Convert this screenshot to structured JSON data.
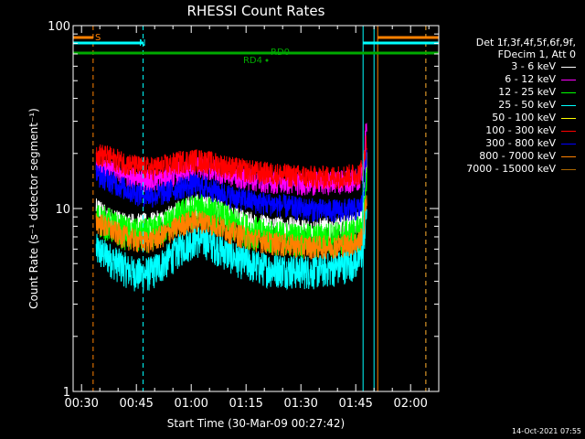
{
  "chart_data": {
    "type": "line",
    "title": "RHESSI Count Rates",
    "xlabel": "Start Time (30-Mar-09 00:27:42)",
    "ylabel": "Count Rate (s⁻¹ detector segment⁻¹)",
    "y_scale": "log",
    "ylim": [
      1,
      100
    ],
    "y_ticks": [
      {
        "value": 1,
        "label": "1"
      },
      {
        "value": 10,
        "label": "10"
      },
      {
        "value": 100,
        "label": "100"
      }
    ],
    "xlim": [
      "00:27:42",
      "02:07:42"
    ],
    "x_ticks": [
      "00:30",
      "00:45",
      "01:00",
      "01:15",
      "01:30",
      "01:45",
      "02:00"
    ],
    "series": [
      {
        "name": "3 - 6 keV",
        "color": "#ffffff",
        "x": [
          "00:34",
          "00:37",
          "00:40",
          "00:43",
          "00:46",
          "00:49",
          "00:52",
          "00:55",
          "00:58",
          "01:01",
          "01:04",
          "01:07",
          "01:10",
          "01:13",
          "01:16",
          "01:19",
          "01:22",
          "01:25",
          "01:28",
          "01:31",
          "01:34",
          "01:37",
          "01:40",
          "01:43",
          "01:46",
          "01:47",
          "01:48"
        ],
        "y": [
          10,
          9,
          8.5,
          8.3,
          8.2,
          8.3,
          8.6,
          9.2,
          10,
          10.5,
          10.4,
          9.9,
          9.3,
          8.8,
          8.4,
          8.1,
          8,
          7.9,
          7.8,
          7.7,
          7.7,
          7.8,
          7.9,
          8.1,
          8.5,
          9.5,
          18
        ]
      },
      {
        "name": "6 - 12 keV",
        "color": "#ff00ff",
        "x": [
          "00:34",
          "00:37",
          "00:40",
          "00:43",
          "00:46",
          "00:49",
          "00:52",
          "00:55",
          "00:58",
          "01:01",
          "01:04",
          "01:07",
          "01:10",
          "01:13",
          "01:16",
          "01:19",
          "01:22",
          "01:25",
          "01:28",
          "01:31",
          "01:34",
          "01:37",
          "01:40",
          "01:43",
          "01:46",
          "01:47",
          "01:48"
        ],
        "y": [
          17,
          16.5,
          15.8,
          15,
          14.5,
          14.3,
          14.6,
          15.3,
          16.2,
          16.9,
          16.7,
          16.1,
          15.5,
          15,
          14.6,
          14.3,
          14.1,
          14,
          13.9,
          13.8,
          13.8,
          13.9,
          14,
          14.2,
          14.6,
          16,
          30
        ]
      },
      {
        "name": "12 - 25 keV",
        "color": "#00ff00",
        "x": [
          "00:34",
          "00:37",
          "00:40",
          "00:43",
          "00:46",
          "00:49",
          "00:52",
          "00:55",
          "00:58",
          "01:01",
          "01:04",
          "01:07",
          "01:10",
          "01:13",
          "01:16",
          "01:19",
          "01:22",
          "01:25",
          "01:28",
          "01:31",
          "01:34",
          "01:37",
          "01:40",
          "01:43",
          "01:46",
          "01:47",
          "01:48"
        ],
        "y": [
          9,
          8.4,
          7.8,
          7.4,
          7.2,
          7.4,
          7.9,
          8.6,
          9.4,
          9.9,
          9.8,
          9.2,
          8.6,
          8.1,
          7.6,
          7.3,
          7.1,
          7,
          6.9,
          6.8,
          6.8,
          6.9,
          7,
          7.2,
          7.5,
          8.5,
          14
        ]
      },
      {
        "name": "25 - 50 keV",
        "color": "#00ffff",
        "x": [
          "00:34",
          "00:37",
          "00:40",
          "00:43",
          "00:46",
          "00:49",
          "00:52",
          "00:55",
          "00:58",
          "01:01",
          "01:04",
          "01:07",
          "01:10",
          "01:13",
          "01:16",
          "01:19",
          "01:22",
          "01:25",
          "01:28",
          "01:31",
          "01:34",
          "01:37",
          "01:40",
          "01:43",
          "01:46",
          "01:47",
          "01:48"
        ],
        "y": [
          6,
          5.5,
          5,
          4.6,
          4.4,
          4.5,
          5,
          5.6,
          6.3,
          6.8,
          6.7,
          6.2,
          5.7,
          5.3,
          5,
          4.8,
          4.7,
          4.7,
          4.6,
          4.6,
          4.6,
          4.7,
          4.8,
          5,
          5.3,
          6,
          10
        ]
      },
      {
        "name": "50 - 100 keV",
        "color": "#ffff00",
        "x": [],
        "y": []
      },
      {
        "name": "100 - 300 keV",
        "color": "#ff0000",
        "x": [
          "00:34",
          "00:37",
          "00:40",
          "00:43",
          "00:46",
          "00:49",
          "00:52",
          "00:55",
          "00:58",
          "01:01",
          "01:04",
          "01:07",
          "01:10",
          "01:13",
          "01:16",
          "01:19",
          "01:22",
          "01:25",
          "01:28",
          "01:31",
          "01:34",
          "01:37",
          "01:40",
          "01:43",
          "01:46",
          "01:47",
          "01:48"
        ],
        "y": [
          20,
          19.3,
          18.4,
          17.5,
          16.9,
          16.7,
          17,
          17.6,
          18.3,
          18.5,
          18.2,
          17.6,
          17,
          16.5,
          16.1,
          15.8,
          15.6,
          15.4,
          15.2,
          15,
          14.9,
          14.9,
          15,
          15.2,
          15.6,
          17,
          24
        ]
      },
      {
        "name": "300 - 800 keV",
        "color": "#0000ff",
        "x": [
          "00:34",
          "00:37",
          "00:40",
          "00:43",
          "00:46",
          "00:49",
          "00:52",
          "00:55",
          "00:58",
          "01:01",
          "01:04",
          "01:07",
          "01:10",
          "01:13",
          "01:16",
          "01:19",
          "01:22",
          "01:25",
          "01:28",
          "01:31",
          "01:34",
          "01:37",
          "01:40",
          "01:43",
          "01:46",
          "01:47",
          "01:48"
        ],
        "y": [
          15.5,
          14.5,
          13.5,
          12.6,
          12,
          11.8,
          12.1,
          12.7,
          13.3,
          13.5,
          13.1,
          12.5,
          11.9,
          11.4,
          11.1,
          10.8,
          10.6,
          10.4,
          10.2,
          10,
          9.9,
          9.8,
          9.8,
          9.9,
          10,
          11,
          20
        ]
      },
      {
        "name": "800 - 7000 keV",
        "color": "#ff8000",
        "x": [
          "00:34",
          "00:37",
          "00:40",
          "00:43",
          "00:46",
          "00:49",
          "00:52",
          "00:55",
          "00:58",
          "01:01",
          "01:04",
          "01:07",
          "01:10",
          "01:13",
          "01:16",
          "01:19",
          "01:22",
          "01:25",
          "01:28",
          "01:31",
          "01:34",
          "01:37",
          "01:40",
          "01:43",
          "01:46",
          "01:47",
          "01:48"
        ],
        "y": [
          8.5,
          7.9,
          7.3,
          6.9,
          6.6,
          6.7,
          7.1,
          7.7,
          8.3,
          8.6,
          8.5,
          8.1,
          7.6,
          7.2,
          6.9,
          6.7,
          6.5,
          6.4,
          6.3,
          6.2,
          6.2,
          6.2,
          6.3,
          6.4,
          6.6,
          7.5,
          12
        ]
      },
      {
        "name": "7000 - 15000 keV",
        "color": "#aa6600",
        "x": [],
        "y": []
      }
    ],
    "vertical_lines": [
      {
        "x": "00:27:42",
        "color": "#00ffff",
        "style": "solid"
      },
      {
        "x": "00:33:10",
        "color": "#ff8000",
        "style": "dashed"
      },
      {
        "x": "00:46:50",
        "color": "#00ffff",
        "style": "dashed"
      },
      {
        "x": "01:47:00",
        "color": "#00ffff",
        "style": "solid"
      },
      {
        "x": "01:51:00",
        "color": "#ff8000",
        "style": "solid"
      },
      {
        "x": "01:50:00",
        "color": "#00ffff",
        "style": "solid"
      },
      {
        "x": "02:04:10",
        "color": "#00ffff",
        "style": "dashed"
      },
      {
        "x": "02:04:10",
        "color": "#ff8000",
        "style": "dashed"
      }
    ],
    "annotations": [
      {
        "text": "S",
        "color": "#ff8000"
      },
      {
        "text": "N",
        "color": "#00ffff"
      },
      {
        "text": "RD0",
        "color": "#00aa00"
      },
      {
        "text": "RD4",
        "color": "#00aa00"
      }
    ],
    "legend": {
      "placement": "right",
      "header": [
        "Det 1f,3f,4f,5f,6f,9f,",
        "FDecim 1, Att 0"
      ]
    },
    "grid": false
  },
  "footer": {
    "date_stamp": "14-Oct-2021 07:55"
  }
}
